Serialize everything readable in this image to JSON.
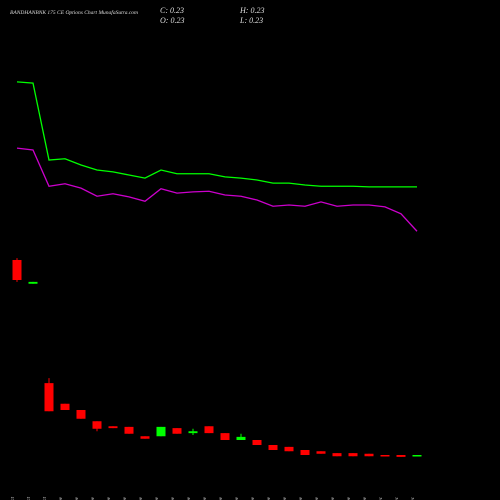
{
  "chart_data": {
    "type": "candlestick",
    "title": "BANDHANBNK 175 CE Options Chart MunafaSutra.com",
    "ohlc_header": [
      {
        "label": "C:",
        "value": 0.23
      },
      {
        "label": "H:",
        "value": 0.23
      },
      {
        "label": "O:",
        "value": 0.23
      },
      {
        "label": "L:",
        "value": 0.23
      }
    ],
    "categories": [
      "29 Oct",
      "30 Oct",
      "31 Oct",
      "01 Nov",
      "04 Nov",
      "05 Nov",
      "06 Nov",
      "07 Nov",
      "08 Nov",
      "11 Nov",
      "12 Nov",
      "13 Nov",
      "14 Nov",
      "18 Nov",
      "19 Nov",
      "20 Nov",
      "21 Nov",
      "22 Nov",
      "25 Nov",
      "26 Nov",
      "27 Nov",
      "28 Nov",
      "29 Nov",
      "02 Dec",
      "03 Dec",
      "04 Dec"
    ],
    "open": [
      3.35,
      2.97,
      1.38,
      1.05,
      0.95,
      0.77,
      0.69,
      0.68,
      0.53,
      0.53,
      0.66,
      0.58,
      0.69,
      0.58,
      0.47,
      0.47,
      0.39,
      0.36,
      0.31,
      0.29,
      0.26,
      0.26,
      0.25,
      0.23,
      0.23,
      0.23
    ],
    "high": [
      3.38,
      3.0,
      1.46,
      1.05,
      0.95,
      0.77,
      0.69,
      0.68,
      0.53,
      0.68,
      0.66,
      0.65,
      0.69,
      0.58,
      0.57,
      0.47,
      0.39,
      0.36,
      0.31,
      0.29,
      0.26,
      0.26,
      0.25,
      0.23,
      0.23,
      0.23
    ],
    "low": [
      3.0,
      2.97,
      0.93,
      0.95,
      0.81,
      0.61,
      0.66,
      0.57,
      0.49,
      0.53,
      0.57,
      0.55,
      0.58,
      0.47,
      0.47,
      0.39,
      0.31,
      0.29,
      0.23,
      0.25,
      0.21,
      0.21,
      0.21,
      0.21,
      0.2,
      0.23
    ],
    "close": [
      3.03,
      3.0,
      0.93,
      0.95,
      0.81,
      0.65,
      0.66,
      0.57,
      0.49,
      0.68,
      0.57,
      0.61,
      0.58,
      0.47,
      0.52,
      0.39,
      0.31,
      0.29,
      0.23,
      0.25,
      0.21,
      0.21,
      0.21,
      0.21,
      0.2,
      0.23
    ],
    "up_color": "#00ff00",
    "down_color": "#ff0000",
    "lines": [
      {
        "color": "#00ff00",
        "values": [
          6.2,
          6.18,
          4.95,
          4.97,
          4.87,
          4.79,
          4.76,
          4.71,
          4.66,
          4.79,
          4.73,
          4.73,
          4.73,
          4.68,
          4.66,
          4.63,
          4.58,
          4.58,
          4.55,
          4.53,
          4.53,
          4.53,
          4.52,
          4.52,
          4.52,
          4.52
        ]
      },
      {
        "color": "#cc00cc",
        "values": [
          5.14,
          5.11,
          4.53,
          4.57,
          4.5,
          4.37,
          4.41,
          4.36,
          4.29,
          4.49,
          4.42,
          4.44,
          4.45,
          4.39,
          4.37,
          4.31,
          4.21,
          4.23,
          4.21,
          4.28,
          4.21,
          4.23,
          4.23,
          4.2,
          4.09,
          3.81
        ]
      }
    ],
    "ylim": [
      0.15,
      7.51
    ]
  }
}
